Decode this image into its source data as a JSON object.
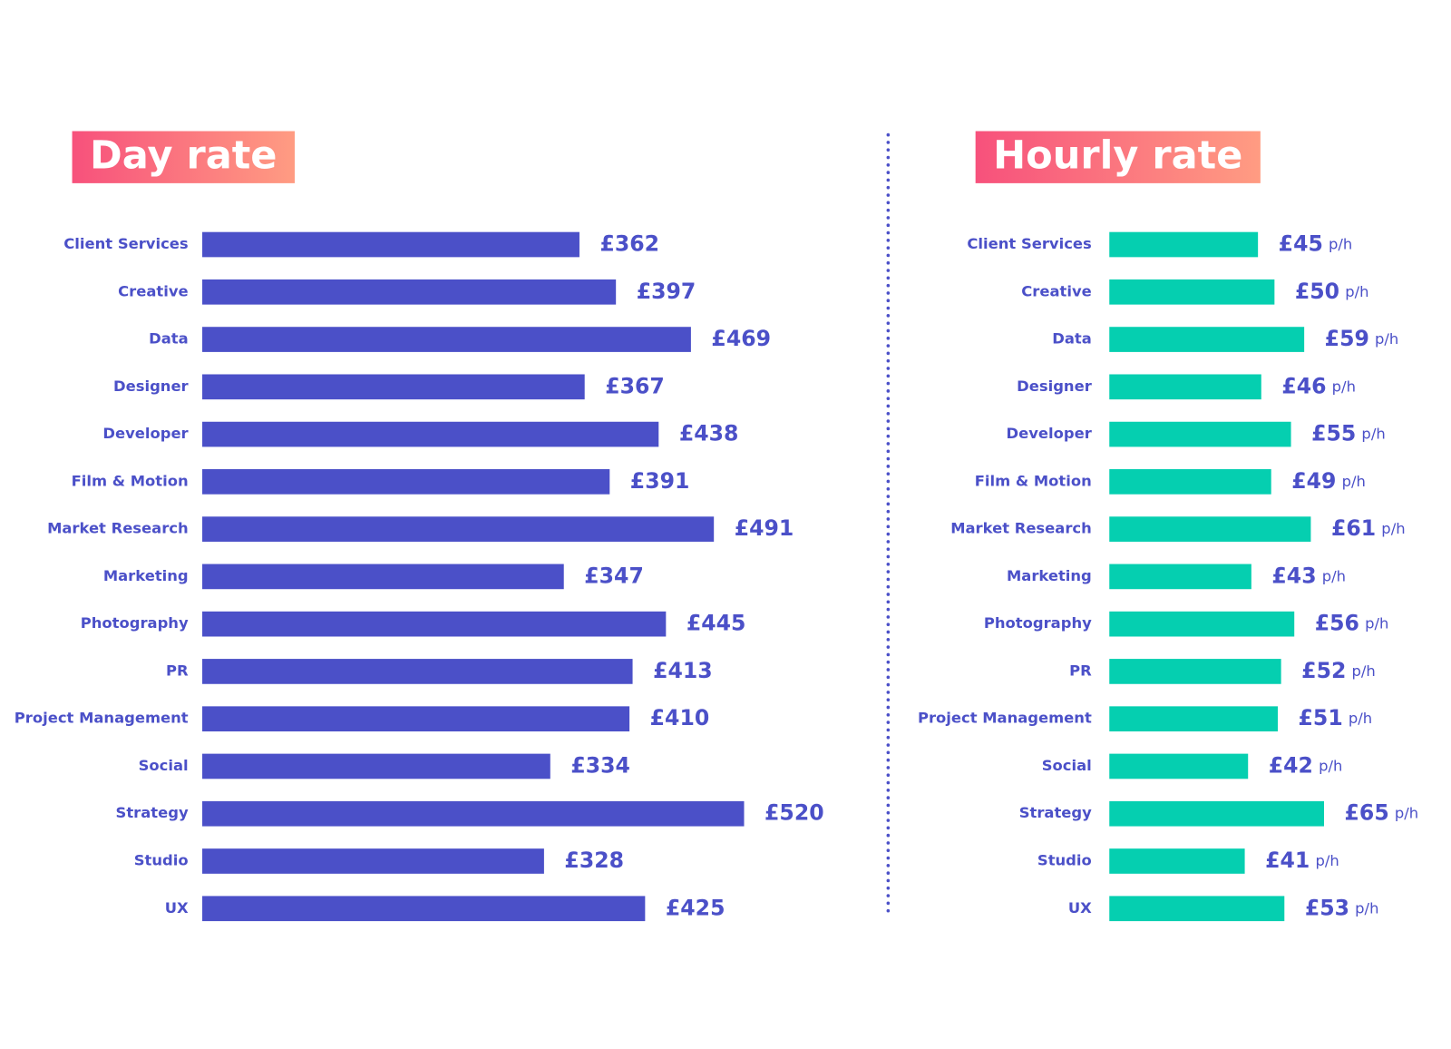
{
  "chart_data": [
    {
      "type": "bar",
      "orientation": "horizontal",
      "title": "Day rate",
      "categories": [
        "Client Services",
        "Creative",
        "Data",
        "Designer",
        "Developer",
        "Film & Motion",
        "Market Research",
        "Marketing",
        "Photography",
        "PR",
        "Project Management",
        "Social",
        "Strategy",
        "Studio",
        "UX"
      ],
      "values": [
        362,
        397,
        469,
        367,
        438,
        391,
        491,
        347,
        445,
        413,
        410,
        334,
        520,
        328,
        425
      ],
      "value_labels": [
        "£362",
        "£397",
        "£469",
        "£367",
        "£438",
        "£391",
        "£491",
        "£347",
        "£445",
        "£413",
        "£410",
        "£334",
        "£520",
        "£328",
        "£425"
      ],
      "color": "#4b50c8"
    },
    {
      "type": "bar",
      "orientation": "horizontal",
      "title": "Hourly rate",
      "categories": [
        "Client Services",
        "Creative",
        "Data",
        "Designer",
        "Developer",
        "Film & Motion",
        "Market Research",
        "Marketing",
        "Photography",
        "PR",
        "Project Management",
        "Social",
        "Strategy",
        "Studio",
        "UX"
      ],
      "values": [
        45,
        50,
        59,
        46,
        55,
        49,
        61,
        43,
        56,
        52,
        51,
        42,
        65,
        41,
        53
      ],
      "value_labels": [
        "£45",
        "£50",
        "£59",
        "£46",
        "£55",
        "£49",
        "£61",
        "£43",
        "£56",
        "£52",
        "£51",
        "£42",
        "£65",
        "£41",
        "£53"
      ],
      "value_suffix": "p/h",
      "color": "#05cfb0"
    }
  ]
}
